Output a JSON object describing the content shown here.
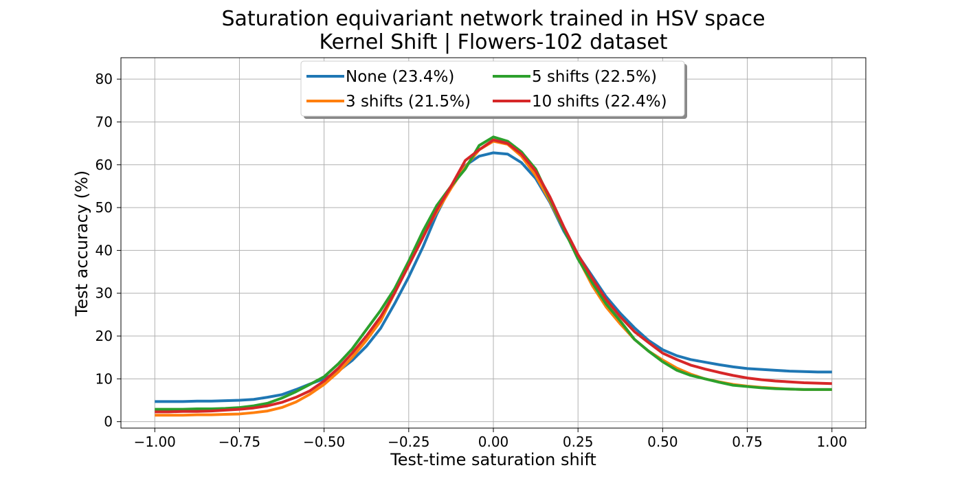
{
  "chart_data": {
    "type": "line",
    "title": "Saturation equivariant network trained in HSV space",
    "subtitle": "Kernel Shift | Flowers-102 dataset",
    "xlabel": "Test-time saturation shift",
    "ylabel": "Test accuracy (%)",
    "xlim": [
      -1.1,
      1.1
    ],
    "ylim": [
      -1.5,
      85
    ],
    "xticks": [
      -1.0,
      -0.75,
      -0.5,
      -0.25,
      0.0,
      0.25,
      0.5,
      0.75,
      1.0
    ],
    "xtick_labels": [
      "−1.00",
      "−0.75",
      "−0.50",
      "−0.25",
      "0.00",
      "0.25",
      "0.50",
      "0.75",
      "1.00"
    ],
    "yticks": [
      0,
      10,
      20,
      30,
      40,
      50,
      60,
      70,
      80
    ],
    "ytick_labels": [
      "0",
      "10",
      "20",
      "30",
      "40",
      "50",
      "60",
      "70",
      "80"
    ],
    "grid": true,
    "legend_position": "top-center",
    "x": [
      -1.0,
      -0.958,
      -0.917,
      -0.875,
      -0.833,
      -0.792,
      -0.75,
      -0.708,
      -0.667,
      -0.625,
      -0.583,
      -0.542,
      -0.5,
      -0.458,
      -0.417,
      -0.375,
      -0.333,
      -0.292,
      -0.25,
      -0.208,
      -0.167,
      -0.125,
      -0.083,
      -0.042,
      0.0,
      0.042,
      0.083,
      0.125,
      0.167,
      0.208,
      0.25,
      0.292,
      0.333,
      0.375,
      0.417,
      0.458,
      0.5,
      0.542,
      0.583,
      0.625,
      0.667,
      0.708,
      0.75,
      0.792,
      0.833,
      0.875,
      0.917,
      0.958,
      1.0
    ],
    "series": [
      {
        "name": "None (23.4%)",
        "color": "#1f77b4",
        "values": [
          4.7,
          4.7,
          4.7,
          4.8,
          4.8,
          4.9,
          5.0,
          5.2,
          5.7,
          6.3,
          7.5,
          8.8,
          10.0,
          11.8,
          14.3,
          17.6,
          21.8,
          27.5,
          33.8,
          40.8,
          48.5,
          55.0,
          59.8,
          62.0,
          62.8,
          62.5,
          60.5,
          56.8,
          51.2,
          44.5,
          38.9,
          34.0,
          29.2,
          25.3,
          21.9,
          19.0,
          16.8,
          15.4,
          14.5,
          13.9,
          13.3,
          12.8,
          12.4,
          12.2,
          12.0,
          11.8,
          11.7,
          11.6,
          11.6
        ]
      },
      {
        "name": "3 shifts (21.5%)",
        "color": "#ff7f0e",
        "values": [
          1.5,
          1.5,
          1.5,
          1.6,
          1.6,
          1.7,
          1.8,
          2.1,
          2.5,
          3.3,
          4.6,
          6.4,
          8.7,
          11.6,
          15.0,
          19.0,
          23.5,
          30.0,
          37.0,
          43.5,
          49.0,
          54.5,
          59.5,
          63.5,
          65.5,
          64.8,
          62.0,
          57.5,
          51.5,
          45.0,
          38.2,
          31.8,
          26.8,
          22.8,
          19.2,
          16.5,
          14.4,
          12.5,
          11.1,
          10.0,
          9.3,
          8.7,
          8.3,
          8.0,
          7.8,
          7.6,
          7.5,
          7.5,
          7.5
        ]
      },
      {
        "name": "5 shifts (22.5%)",
        "color": "#2ca02c",
        "values": [
          2.9,
          2.9,
          2.9,
          3.0,
          3.0,
          3.1,
          3.3,
          3.7,
          4.3,
          5.5,
          7.0,
          8.7,
          10.5,
          13.5,
          17.0,
          21.5,
          26.0,
          31.0,
          37.5,
          44.5,
          50.5,
          55.0,
          59.0,
          64.5,
          66.5,
          65.5,
          63.0,
          59.0,
          52.0,
          45.0,
          38.0,
          32.5,
          27.5,
          23.5,
          19.2,
          16.5,
          14.0,
          12.0,
          10.8,
          10.0,
          9.2,
          8.5,
          8.2,
          7.9,
          7.7,
          7.6,
          7.5,
          7.5,
          7.5
        ]
      },
      {
        "name": "10 shifts (22.4%)",
        "color": "#d62728",
        "values": [
          2.3,
          2.3,
          2.4,
          2.4,
          2.5,
          2.7,
          2.9,
          3.2,
          3.7,
          4.5,
          5.7,
          7.2,
          9.5,
          12.5,
          16.0,
          20.0,
          24.5,
          30.0,
          36.5,
          43.0,
          49.5,
          55.0,
          61.0,
          63.5,
          65.8,
          65.0,
          62.5,
          58.5,
          52.5,
          45.5,
          39.0,
          33.5,
          28.5,
          24.5,
          21.0,
          18.5,
          16.0,
          14.5,
          13.2,
          12.3,
          11.5,
          10.8,
          10.2,
          9.8,
          9.5,
          9.3,
          9.1,
          9.0,
          8.9
        ]
      }
    ]
  }
}
